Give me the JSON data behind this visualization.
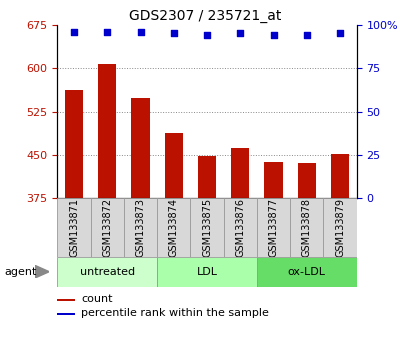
{
  "title": "GDS2307 / 235721_at",
  "samples": [
    "GSM133871",
    "GSM133872",
    "GSM133873",
    "GSM133874",
    "GSM133875",
    "GSM133876",
    "GSM133877",
    "GSM133878",
    "GSM133879"
  ],
  "counts": [
    562,
    608,
    548,
    487,
    448,
    462,
    437,
    436,
    452
  ],
  "percentile_ranks": [
    96,
    96,
    96,
    95,
    94,
    95,
    94,
    94,
    95
  ],
  "ylim_left": [
    375,
    675
  ],
  "ylim_right": [
    0,
    100
  ],
  "yticks_left": [
    375,
    450,
    525,
    600,
    675
  ],
  "yticks_right": [
    0,
    25,
    50,
    75,
    100
  ],
  "bar_color": "#bb1100",
  "dot_color": "#0000cc",
  "groups": [
    {
      "label": "untreated",
      "start": 0,
      "end": 3,
      "color": "#ccffcc"
    },
    {
      "label": "LDL",
      "start": 3,
      "end": 6,
      "color": "#aaffaa"
    },
    {
      "label": "ox-LDL",
      "start": 6,
      "end": 9,
      "color": "#66dd66"
    }
  ],
  "agent_label": "agent",
  "legend_count_label": "count",
  "legend_percentile_label": "percentile rank within the sample",
  "bar_width": 0.55,
  "background_color": "#ffffff",
  "plot_bg_color": "#ffffff",
  "grid_color": "#888888",
  "sample_box_color": "#d8d8d8",
  "title_fontsize": 10,
  "tick_fontsize": 8,
  "label_fontsize": 7,
  "group_fontsize": 8
}
